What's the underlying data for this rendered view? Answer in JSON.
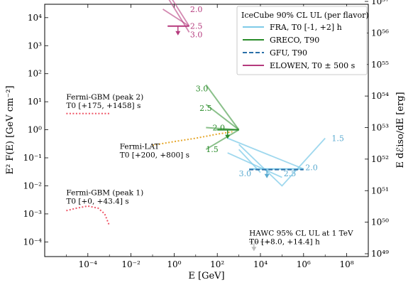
{
  "chart_data": {
    "type": "line",
    "xlabel": "E [GeV]",
    "ylabel_left": "E² F(E) [GeV cm⁻²]",
    "ylabel_right": "E dℰiso/dE [erg]",
    "x_scale": "log",
    "y_scale": "log",
    "xlim": [
      1e-06,
      1000000000.0
    ],
    "ylim": [
      3e-05,
      30000.0
    ],
    "ylim_right": [
      1e+49,
      1e+57
    ],
    "x_ticks": [
      "10⁻⁴",
      "10⁻²",
      "10⁰",
      "10²",
      "10⁴",
      "10⁶",
      "10⁸"
    ],
    "x_tick_values": [
      0.0001,
      0.01,
      1,
      100.0,
      10000.0,
      1000000.0,
      100000000.0
    ],
    "y_ticks": [
      "10⁻⁴",
      "10⁻³",
      "10⁻²",
      "10⁻¹",
      "10⁰",
      "10¹",
      "10²",
      "10³",
      "10⁴"
    ],
    "y_tick_values": [
      0.0001,
      0.001,
      0.01,
      0.1,
      1,
      10,
      100,
      1000,
      10000
    ],
    "y_right_ticks": [
      "10⁴⁹",
      "10⁵⁰",
      "10⁵¹",
      "10⁵²",
      "10⁵³",
      "10⁵⁴",
      "10⁵⁵",
      "10⁵⁶",
      "10⁵⁷"
    ],
    "legend": {
      "title": "IceCube 90% CL UL (per flavor)",
      "placement": "top-right",
      "entries": [
        {
          "label": "FRA, T0 [-1, +2] h",
          "color": "#7fcbe8",
          "dash": "solid"
        },
        {
          "label": "GRECO, T90",
          "color": "#2a8c2a",
          "dash": "solid"
        },
        {
          "label": "GFU, T90",
          "color": "#2a6fa8",
          "dash": "dashed"
        },
        {
          "label": "ELOWEN, T0 ± 500 s",
          "color": "#b53a7d",
          "dash": "solid"
        }
      ]
    },
    "annotations": [
      {
        "text": "Fermi-GBM (peak 2)",
        "text2": "T0 [+175, +1458] s"
      },
      {
        "text": "Fermi-LAT",
        "text2": "T0 [+200, +800] s"
      },
      {
        "text": "Fermi-GBM (peak 1)",
        "text2": "T0 [+0, +43.4] s"
      },
      {
        "text": "HAWC 95% CL UL at 1 TeV",
        "text2": "T0 [+8.0, +14.4] h"
      }
    ],
    "spectral_index_labels": {
      "elowen": [
        "2.0",
        "2.5",
        "3.0"
      ],
      "greco": [
        "3.0",
        "2.5",
        "2.0",
        "1.5"
      ],
      "fra": [
        "1.5",
        "2.0",
        "2.5",
        "3.0"
      ]
    },
    "series": [
      {
        "name": "Fermi-GBM (peak 2)",
        "color": "#ee5566",
        "style": "dotted",
        "x": [
          1e-05,
          0.001
        ],
        "y": [
          3.8,
          3.8
        ]
      },
      {
        "name": "Fermi-GBM (peak 1)",
        "color": "#ee5566",
        "style": "dotted",
        "x": [
          1e-05,
          3e-05,
          0.0001,
          0.0003,
          0.0006,
          0.001
        ],
        "y": [
          0.0013,
          0.0016,
          0.0019,
          0.0016,
          0.001,
          0.00038
        ]
      },
      {
        "name": "Fermi-LAT",
        "color": "#e6a82e",
        "style": "dotted",
        "x": [
          0.1,
          1,
          10,
          100,
          500
        ],
        "y": [
          0.28,
          0.38,
          0.5,
          0.7,
          0.85
        ]
      },
      {
        "name": "HAWC",
        "color": "#bbbbbb",
        "style": "dashed",
        "x": [
          3000,
          30000
        ],
        "y": [
          0.0001,
          0.0001
        ],
        "ul_arrow_x": 5000
      }
    ],
    "elowen_lines": [
      {
        "index": "2.0",
        "x": [
          0.3,
          5
        ],
        "y": [
          20000,
          5000
        ]
      },
      {
        "index": "2.5",
        "x": [
          0.3,
          5
        ],
        "y": [
          150000,
          5000
        ]
      },
      {
        "index": "3.0",
        "x": [
          0.3,
          5
        ],
        "y": [
          100000,
          3000
        ]
      }
    ],
    "elowen_bar": {
      "x": [
        0.5,
        5
      ],
      "y": 5000,
      "arrow_x": 1.5
    },
    "greco_lines": [
      {
        "index": "3.0",
        "x": [
          30,
          1000
        ],
        "y": [
          40,
          1.0
        ]
      },
      {
        "index": "2.5",
        "x": [
          30,
          1000
        ],
        "y": [
          8,
          1.0
        ]
      },
      {
        "index": "2.0",
        "x": [
          30,
          1000
        ],
        "y": [
          1.2,
          1.0
        ]
      },
      {
        "index": "1.5",
        "x": [
          30,
          1000
        ],
        "y": [
          0.2,
          1.0
        ]
      }
    ],
    "greco_bar": {
      "x": [
        100,
        1000
      ],
      "y": 1.0,
      "arrow_x": 300
    },
    "fra_lines": [
      {
        "index": "1.5",
        "x": [
          1000,
          100000,
          10000000
        ],
        "y": [
          0.3,
          0.01,
          0.5
        ]
      },
      {
        "index": "2.0",
        "x": [
          300,
          1000000
        ],
        "y": [
          0.5,
          0.04
        ]
      },
      {
        "index": "2.5",
        "x": [
          300,
          100000
        ],
        "y": [
          0.15,
          0.02
        ]
      },
      {
        "index": "3.0",
        "x": [
          1000,
          10000
        ],
        "y": [
          0.2,
          0.03
        ]
      }
    ],
    "fra_bar": {
      "x": [
        3000,
        1000000
      ],
      "y": 0.04,
      "arrow_x": 20000
    },
    "gfu_bar": {
      "x": [
        3000,
        1000000
      ],
      "y": 0.038
    }
  }
}
